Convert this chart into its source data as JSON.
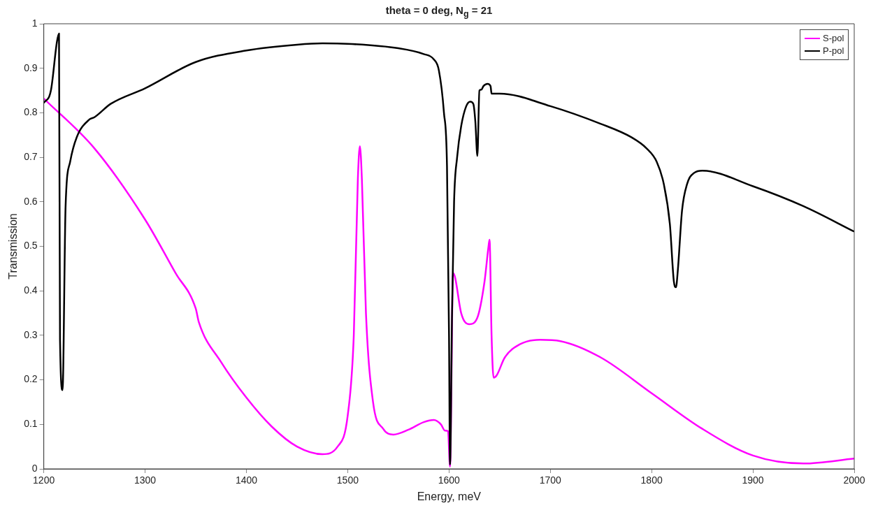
{
  "chart_data": {
    "type": "line",
    "title": "theta = 0 deg, N$_{g}$ = 21",
    "xlabel": "Energy, meV",
    "ylabel": "Transmission",
    "xlim": [
      1200,
      2000
    ],
    "xticks": [
      1200,
      1300,
      1400,
      1500,
      1600,
      1700,
      1800,
      1900,
      2000
    ],
    "ylim": [
      0,
      1
    ],
    "yticks": [
      0,
      0.1,
      0.2,
      0.3,
      0.4,
      0.5,
      0.6,
      0.7,
      0.8,
      0.9,
      1
    ],
    "grid": false,
    "legend": "top right",
    "marker": "none",
    "line_style": "solid",
    "series": [
      {
        "name": "S-pol",
        "color": "#ff00ff",
        "x": [
          1200,
          1250,
          1300,
          1330,
          1350,
          1353,
          1375,
          1400,
          1425,
          1450,
          1475,
          1490,
          1500,
          1506,
          1510,
          1512,
          1514,
          1518,
          1525,
          1535,
          1545,
          1560,
          1575,
          1585,
          1592,
          1596,
          1599,
          1601,
          1604,
          1606,
          1612,
          1620,
          1628,
          1635,
          1639,
          1640,
          1642,
          1644,
          1647,
          1655,
          1670,
          1690,
          1710,
          1750,
          1800,
          1850,
          1900,
          1950,
          2000
        ],
        "values": [
          0.832,
          0.72,
          0.56,
          0.44,
          0.36,
          0.33,
          0.24,
          0.16,
          0.095,
          0.05,
          0.033,
          0.05,
          0.12,
          0.3,
          0.65,
          0.725,
          0.65,
          0.35,
          0.15,
          0.09,
          0.077,
          0.088,
          0.105,
          0.11,
          0.1,
          0.086,
          0.085,
          0.005,
          0.44,
          0.43,
          0.35,
          0.325,
          0.34,
          0.42,
          0.5,
          0.515,
          0.3,
          0.205,
          0.21,
          0.25,
          0.28,
          0.29,
          0.287,
          0.25,
          0.17,
          0.09,
          0.03,
          0.012,
          0.023
        ]
      },
      {
        "name": "P-pol",
        "color": "#000000",
        "x": [
          1200,
          1207,
          1213,
          1215,
          1216,
          1218.5,
          1221.5,
          1226,
          1232.5,
          1245,
          1250,
          1266,
          1300,
          1350,
          1400,
          1450,
          1475,
          1500,
          1550,
          1575,
          1585,
          1590,
          1595,
          1598,
          1600,
          1601,
          1603,
          1605,
          1608,
          1612,
          1617,
          1621,
          1624,
          1626,
          1628,
          1630,
          1632,
          1634,
          1638,
          1641,
          1642,
          1650,
          1700,
          1750,
          1780,
          1795,
          1805,
          1812,
          1818,
          1822,
          1824,
          1826,
          1830,
          1835,
          1842,
          1850,
          1900,
          1950,
          2000
        ],
        "values": [
          0.822,
          0.85,
          0.96,
          0.978,
          0.29,
          0.177,
          0.59,
          0.69,
          0.745,
          0.785,
          0.79,
          0.82,
          0.855,
          0.914,
          0.94,
          0.953,
          0.956,
          0.955,
          0.945,
          0.932,
          0.92,
          0.895,
          0.8,
          0.68,
          0.3,
          0.01,
          0.35,
          0.6,
          0.7,
          0.77,
          0.815,
          0.825,
          0.82,
          0.78,
          0.703,
          0.85,
          0.852,
          0.86,
          0.865,
          0.86,
          0.843,
          0.843,
          0.815,
          0.775,
          0.745,
          0.72,
          0.69,
          0.64,
          0.55,
          0.42,
          0.408,
          0.45,
          0.58,
          0.64,
          0.665,
          0.67,
          0.635,
          0.59,
          0.533
        ]
      }
    ]
  }
}
